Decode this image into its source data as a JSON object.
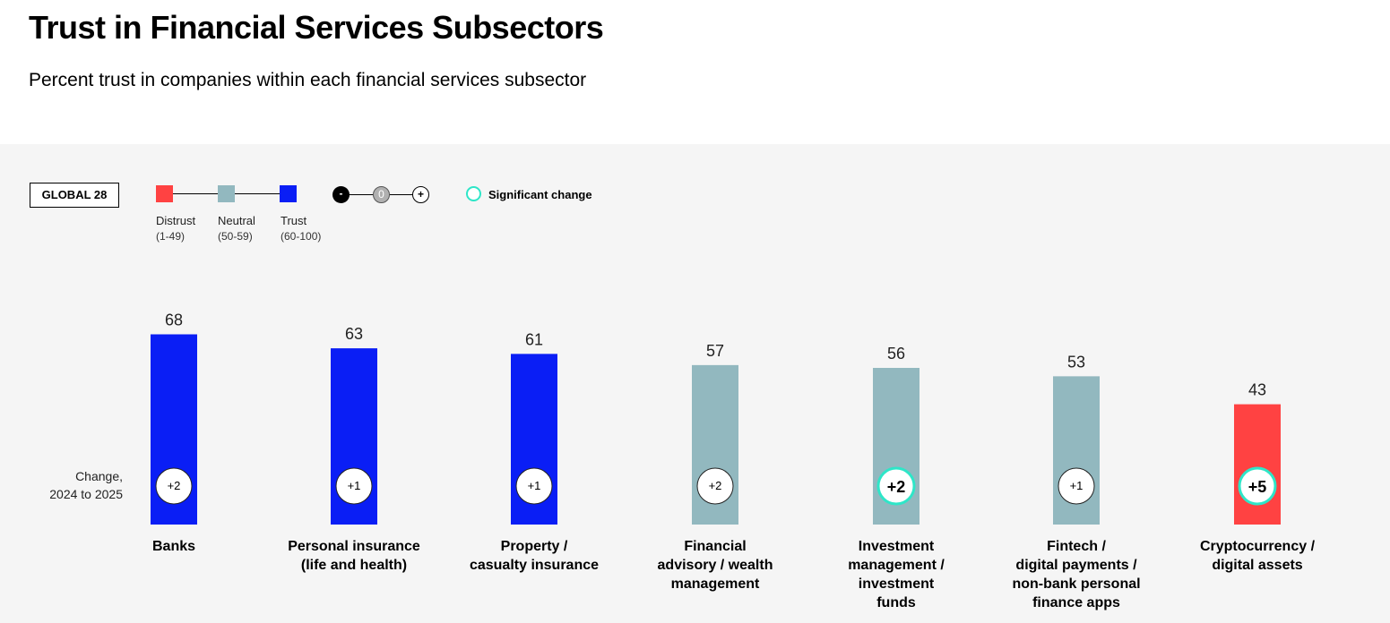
{
  "title": "Trust in Financial Services Subsectors",
  "subtitle": "Percent trust in companies within each financial services subsector",
  "global_label": "GLOBAL 28",
  "legend": {
    "distrust": {
      "label": "Distrust",
      "range": "(1-49)",
      "color": "#ff4242"
    },
    "neutral": {
      "label": "Neutral",
      "range": "(50-59)",
      "color": "#92b8bf"
    },
    "trust": {
      "label": "Trust",
      "range": "(60-100)",
      "color": "#0a1ef5"
    },
    "change_minus": "-",
    "change_zero": "0",
    "change_plus": "+",
    "significant_label": "Significant change",
    "significant_color": "#2ee6c8"
  },
  "change_caption_line1": "Change,",
  "change_caption_line2": "2024 to 2025",
  "chart_data": {
    "type": "bar",
    "ylim": [
      0,
      100
    ],
    "categories": [
      [
        "Banks"
      ],
      [
        "Personal insurance",
        "(life and health)"
      ],
      [
        "Property /",
        "casualty insurance"
      ],
      [
        "Financial",
        "advisory / wealth",
        "management"
      ],
      [
        "Investment",
        "management /",
        "investment",
        "funds"
      ],
      [
        "Fintech /",
        "digital payments /",
        "non-bank personal",
        "finance apps"
      ],
      [
        "Cryptocurrency /",
        "digital assets"
      ]
    ],
    "values": [
      68,
      63,
      61,
      57,
      56,
      53,
      43
    ],
    "changes": [
      "+2",
      "+1",
      "+1",
      "+2",
      "+2",
      "+1",
      "+5"
    ],
    "significant": [
      false,
      false,
      false,
      false,
      true,
      false,
      true
    ]
  }
}
